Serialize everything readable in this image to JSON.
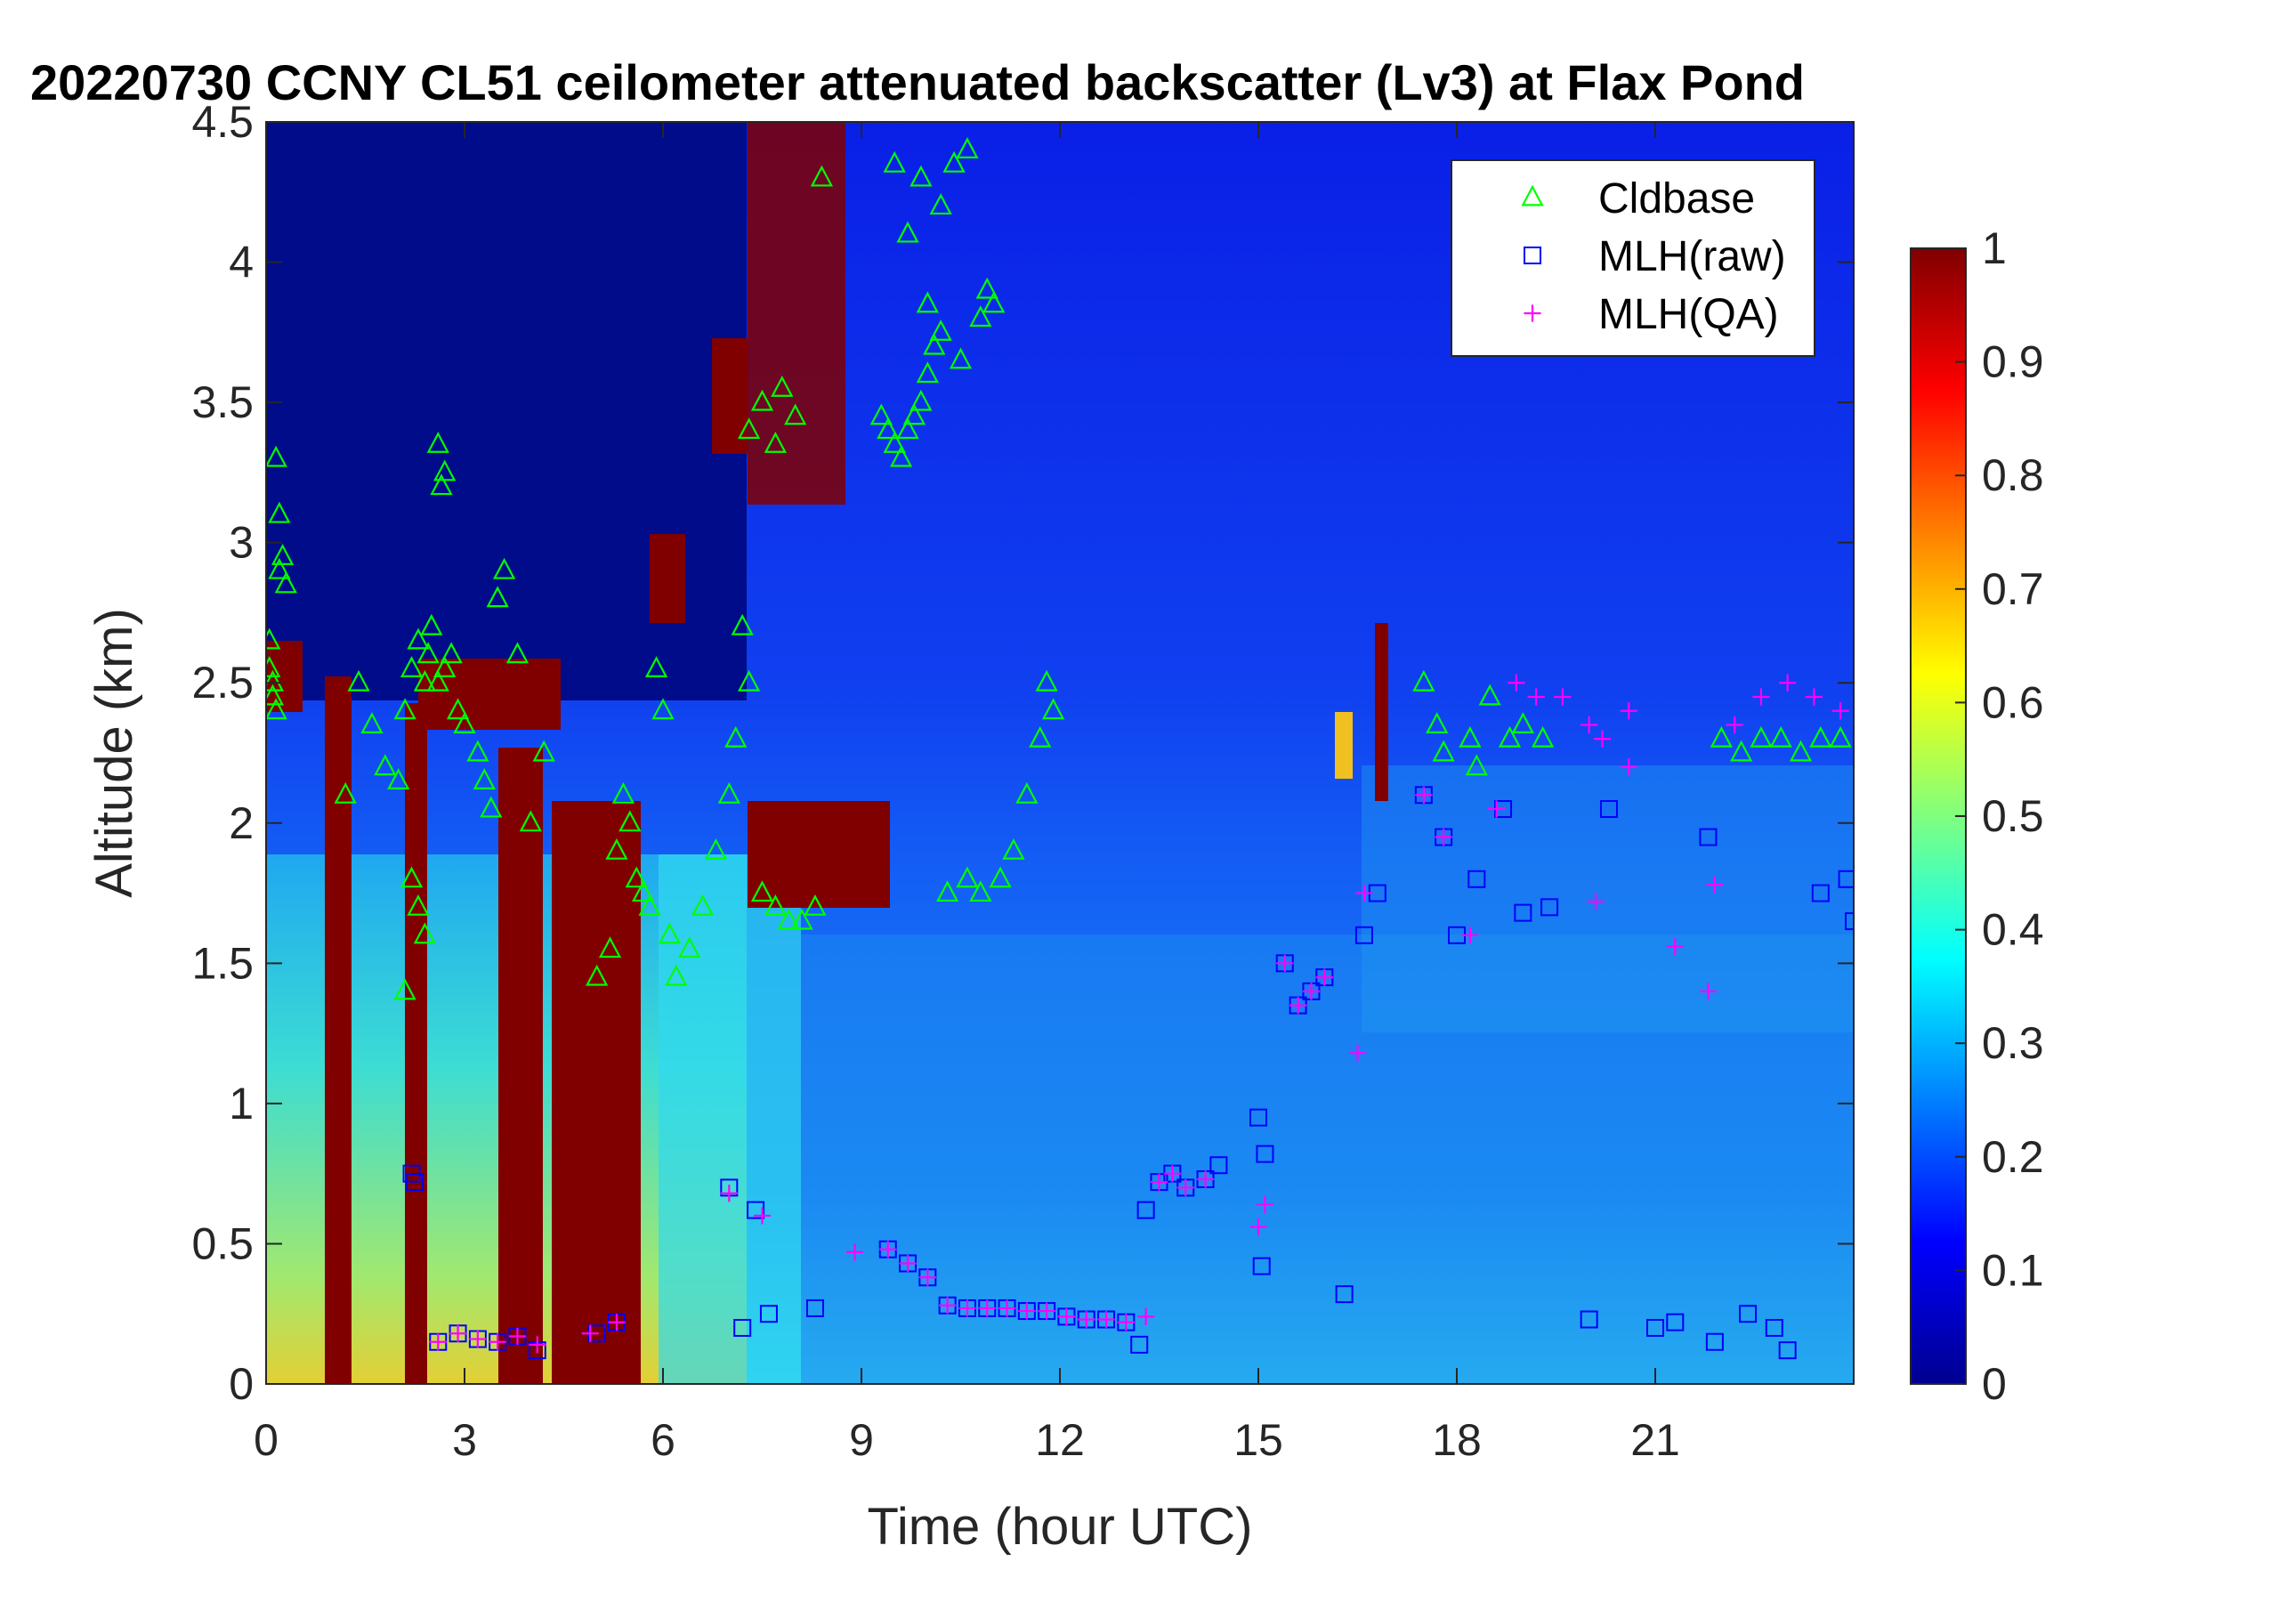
{
  "chart_data": {
    "type": "heatmap",
    "title": "20220730 CCNY CL51 ceilometer attenuated backscatter (Lv3) at Flax Pond",
    "xlabel": "Time (hour UTC)",
    "ylabel": "Altitude (km)",
    "xlim": [
      0,
      24
    ],
    "ylim": [
      0,
      4.5
    ],
    "xticks": [
      0,
      3,
      6,
      9,
      12,
      15,
      18,
      21
    ],
    "yticks": [
      0,
      0.5,
      1,
      1.5,
      2,
      2.5,
      3,
      3.5,
      4,
      4.5
    ],
    "xtick_labels": [
      "0",
      "3",
      "6",
      "9",
      "12",
      "15",
      "18",
      "21"
    ],
    "ytick_labels": [
      "0",
      "0.5",
      "1",
      "1.5",
      "2",
      "2.5",
      "3",
      "3.5",
      "4",
      "4.5"
    ],
    "colorbar": {
      "colormap": "jet",
      "range": [
        0,
        1
      ],
      "ticks": [
        0,
        0.1,
        0.2,
        0.3,
        0.4,
        0.5,
        0.6,
        0.7,
        0.8,
        0.9,
        1
      ],
      "tick_labels": [
        "0",
        "0.1",
        "0.2",
        "0.3",
        "0.4",
        "0.5",
        "0.6",
        "0.7",
        "0.8",
        "0.9",
        "1"
      ]
    },
    "legend": {
      "placement": "top-right",
      "entries": [
        {
          "label": "Cldbase",
          "marker": "triangle",
          "color": "#00ff00"
        },
        {
          "label": "MLH(raw)",
          "marker": "square",
          "color": "#0000ff"
        },
        {
          "label": "MLH(QA)",
          "marker": "plus",
          "color": "#ff00ff"
        }
      ]
    },
    "series": [
      {
        "name": "Cldbase",
        "marker": "triangle",
        "color": "#00ff00",
        "x": [
          0.05,
          0.1,
          0.15,
          0.2,
          0.25,
          0.3,
          0.05,
          0.1,
          0.15,
          0.2,
          1.2,
          1.4,
          1.6,
          1.8,
          2.0,
          2.1,
          2.2,
          2.3,
          2.4,
          2.45,
          2.5,
          2.6,
          2.7,
          2.8,
          2.9,
          2.6,
          2.7,
          2.65,
          3.0,
          3.2,
          3.3,
          3.4,
          3.5,
          3.6,
          3.8,
          4.0,
          4.2,
          2.2,
          2.3,
          2.4,
          2.1,
          5.0,
          5.2,
          5.3,
          5.4,
          5.5,
          5.6,
          5.7,
          5.8,
          5.9,
          6.0,
          6.1,
          6.2,
          6.4,
          6.6,
          6.8,
          7.0,
          7.1,
          7.2,
          7.3,
          7.5,
          7.7,
          7.9,
          8.1,
          8.3,
          7.3,
          7.5,
          7.8,
          8.0,
          7.7,
          8.4,
          9.3,
          9.4,
          9.5,
          9.6,
          9.7,
          9.8,
          9.9,
          10.0,
          10.1,
          9.5,
          9.7,
          9.9,
          10.2,
          10.4,
          10.6,
          10.5,
          10.2,
          10.0,
          10.8,
          10.9,
          11.0,
          11.1,
          11.3,
          11.5,
          11.7,
          11.9,
          11.8,
          10.3,
          10.6,
          10.8,
          17.5,
          17.7,
          18.2,
          18.5,
          18.8,
          19.0,
          19.3,
          17.8,
          18.3,
          22.0,
          22.3,
          22.6,
          22.9,
          23.2,
          23.5,
          23.8
        ],
        "y": [
          2.55,
          2.45,
          3.3,
          3.1,
          2.95,
          2.85,
          2.65,
          2.5,
          2.4,
          2.9,
          2.1,
          2.5,
          2.35,
          2.2,
          2.15,
          2.4,
          2.55,
          2.65,
          2.5,
          2.6,
          2.7,
          2.5,
          2.55,
          2.6,
          2.4,
          3.35,
          3.25,
          3.2,
          2.35,
          2.25,
          2.15,
          2.05,
          2.8,
          2.9,
          2.6,
          2.0,
          2.25,
          1.8,
          1.7,
          1.6,
          1.4,
          1.45,
          1.55,
          1.9,
          2.1,
          2.0,
          1.8,
          1.75,
          1.7,
          2.55,
          2.4,
          1.6,
          1.45,
          1.55,
          1.7,
          1.9,
          2.1,
          2.3,
          2.7,
          2.5,
          1.75,
          1.7,
          1.65,
          1.65,
          1.7,
          3.4,
          3.5,
          3.55,
          3.45,
          3.35,
          4.3,
          3.45,
          3.4,
          3.35,
          3.3,
          3.4,
          3.45,
          3.5,
          3.6,
          3.7,
          4.35,
          4.1,
          4.3,
          4.2,
          4.35,
          4.4,
          3.65,
          3.75,
          3.85,
          3.8,
          3.9,
          3.85,
          1.8,
          1.9,
          2.1,
          2.3,
          2.4,
          2.5,
          1.75,
          1.8,
          1.75,
          2.5,
          2.35,
          2.3,
          2.45,
          2.3,
          2.35,
          2.3,
          2.25,
          2.2,
          2.3,
          2.25,
          2.3,
          2.3,
          2.25,
          2.3,
          2.3
        ]
      },
      {
        "name": "MLH(raw)",
        "marker": "square",
        "color": "#0000ff",
        "x": [
          2.2,
          2.25,
          2.6,
          2.9,
          3.2,
          3.5,
          3.8,
          4.1,
          5.0,
          5.3,
          7.0,
          7.2,
          7.4,
          7.6,
          8.3,
          9.4,
          9.7,
          10.0,
          10.3,
          10.6,
          10.9,
          11.2,
          11.5,
          11.8,
          12.1,
          12.4,
          12.7,
          13.0,
          13.2,
          13.3,
          13.5,
          13.7,
          13.9,
          14.2,
          14.4,
          15.0,
          15.05,
          15.1,
          15.4,
          15.6,
          15.8,
          16.0,
          16.3,
          16.6,
          16.8,
          17.5,
          17.8,
          18.0,
          18.3,
          18.7,
          19.0,
          19.4,
          20.0,
          20.3,
          21.0,
          21.3,
          21.8,
          21.9,
          22.4,
          22.8,
          23.0,
          23.5,
          23.9,
          24.0
        ],
        "y": [
          0.75,
          0.72,
          0.15,
          0.18,
          0.16,
          0.15,
          0.17,
          0.12,
          0.18,
          0.22,
          0.7,
          0.2,
          0.62,
          0.25,
          0.27,
          0.48,
          0.43,
          0.38,
          0.28,
          0.27,
          0.27,
          0.27,
          0.26,
          0.26,
          0.24,
          0.23,
          0.23,
          0.22,
          0.14,
          0.62,
          0.72,
          0.75,
          0.7,
          0.73,
          0.78,
          0.95,
          0.42,
          0.82,
          1.5,
          1.35,
          1.4,
          1.45,
          0.32,
          1.6,
          1.75,
          2.1,
          1.95,
          1.6,
          1.8,
          2.05,
          1.68,
          1.7,
          0.23,
          2.05,
          0.2,
          0.22,
          1.95,
          0.15,
          0.25,
          0.2,
          0.12,
          1.75,
          1.8,
          1.65
        ]
      },
      {
        "name": "MLH(QA)",
        "marker": "plus",
        "color": "#ff00ff",
        "x": [
          2.6,
          2.9,
          3.2,
          3.5,
          3.8,
          4.1,
          4.9,
          5.3,
          7.0,
          7.5,
          8.9,
          9.4,
          9.7,
          10.0,
          10.3,
          10.6,
          10.9,
          11.2,
          11.5,
          11.8,
          12.1,
          12.4,
          12.7,
          13.0,
          13.3,
          13.5,
          13.7,
          13.9,
          14.2,
          15.0,
          15.1,
          15.4,
          15.6,
          15.8,
          16.0,
          16.5,
          16.6,
          17.5,
          17.8,
          18.2,
          18.6,
          18.9,
          19.2,
          19.6,
          20.0,
          20.2,
          20.6,
          21.3,
          21.8,
          21.9,
          22.2,
          22.6,
          23.0,
          23.4,
          23.8,
          20.1,
          20.6
        ],
        "y": [
          0.15,
          0.18,
          0.16,
          0.15,
          0.17,
          0.14,
          0.18,
          0.22,
          0.68,
          0.6,
          0.47,
          0.48,
          0.43,
          0.38,
          0.28,
          0.27,
          0.27,
          0.27,
          0.26,
          0.26,
          0.24,
          0.23,
          0.23,
          0.22,
          0.24,
          0.72,
          0.75,
          0.7,
          0.73,
          0.56,
          0.64,
          1.5,
          1.35,
          1.4,
          1.45,
          1.18,
          1.75,
          2.1,
          1.95,
          1.6,
          2.05,
          2.5,
          2.45,
          2.45,
          2.35,
          2.3,
          2.4,
          1.56,
          1.4,
          1.78,
          2.35,
          2.45,
          2.5,
          2.45,
          2.4,
          1.72,
          2.2
        ]
      }
    ]
  }
}
